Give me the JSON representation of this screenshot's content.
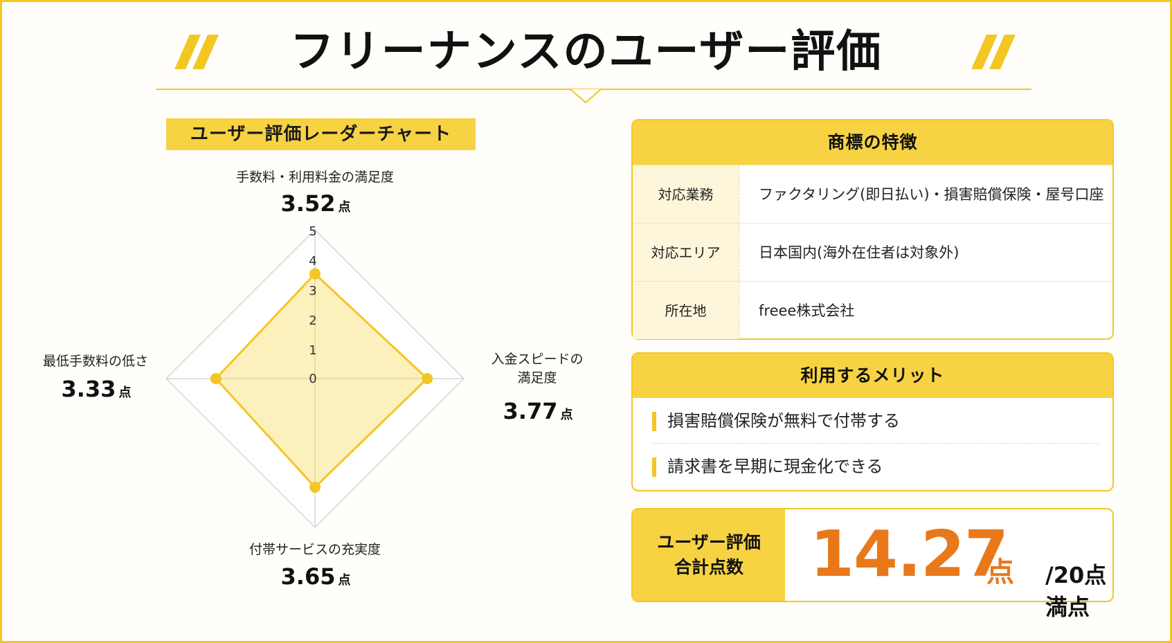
{
  "header": {
    "title": "フリーナンスのユーザー評価"
  },
  "colors": {
    "accent": "#f3c623",
    "accent_fill": "#f7d343",
    "score": "#e9781b"
  },
  "chart_data": {
    "type": "radar",
    "title": "ユーザー評価レーダーチャート",
    "rmin": 0,
    "rmax": 5,
    "ticks": [
      "0",
      "1",
      "2",
      "3",
      "4",
      "5"
    ],
    "unit": "点",
    "axes": [
      {
        "label": "手数料・利用料金の満足度",
        "value": 3.52,
        "value_text": "3.52"
      },
      {
        "label": "入金スピードの満足度",
        "value": 3.77,
        "value_text": "3.77"
      },
      {
        "label": "付帯サービスの充実度",
        "value": 3.65,
        "value_text": "3.65"
      },
      {
        "label": "最低手数料の低さ",
        "value": 3.33,
        "value_text": "3.33"
      }
    ],
    "axis_label_lines": [
      [
        "手数料・利用料金の満足度"
      ],
      [
        "入金スピードの",
        "満足度"
      ],
      [
        "付帯サービスの充実度"
      ],
      [
        "最低手数料の低さ"
      ]
    ]
  },
  "features": {
    "title": "商標の特徴",
    "rows": [
      {
        "key": "対応業務",
        "value": "ファクタリング(即日払い)・損害賠償保険・屋号口座"
      },
      {
        "key": "対応エリア",
        "value": "日本国内(海外在住者は対象外)"
      },
      {
        "key": "所在地",
        "value": "freee株式会社"
      }
    ]
  },
  "merits": {
    "title": "利用するメリット",
    "items": [
      "損害賠償保険が無料で付帯する",
      "請求書を早期に現金化できる"
    ]
  },
  "total": {
    "label_line1": "ユーザー評価",
    "label_line2": "合計点数",
    "score": "14.27",
    "unit": "点",
    "max": "/20点満点"
  }
}
